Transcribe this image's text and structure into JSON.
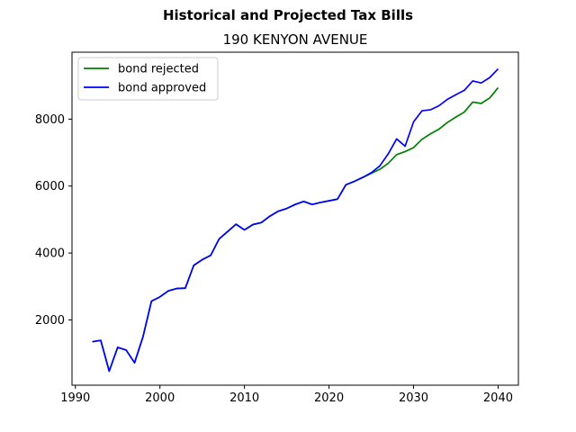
{
  "chart_data": {
    "type": "line",
    "title": "Historical and Projected Tax Bills",
    "subtitle": "190 KENYON AVENUE",
    "xlabel": "",
    "ylabel": "",
    "xlim": [
      1989.6,
      2042.4
    ],
    "ylim": [
      50,
      10000
    ],
    "x_ticks": [
      1990,
      2000,
      2010,
      2020,
      2030,
      2040
    ],
    "y_ticks": [
      2000,
      4000,
      6000,
      8000
    ],
    "grid": false,
    "legend_position": "top-left",
    "x": [
      1992,
      1993,
      1994,
      1995,
      1996,
      1997,
      1998,
      1999,
      2000,
      2001,
      2002,
      2003,
      2004,
      2005,
      2006,
      2007,
      2008,
      2009,
      2010,
      2011,
      2012,
      2013,
      2014,
      2015,
      2016,
      2017,
      2018,
      2019,
      2020,
      2021,
      2022,
      2023,
      2024,
      2025,
      2026,
      2027,
      2028,
      2029,
      2030,
      2031,
      2032,
      2033,
      2034,
      2035,
      2036,
      2037,
      2038,
      2039,
      2040
    ],
    "series": [
      {
        "name": "bond rejected",
        "color": "#008000",
        "values": [
          1350,
          1390,
          470,
          1180,
          1100,
          720,
          1500,
          2560,
          2690,
          2870,
          2940,
          2950,
          3630,
          3800,
          3930,
          4420,
          4640,
          4860,
          4690,
          4850,
          4910,
          5100,
          5250,
          5330,
          5450,
          5540,
          5450,
          5510,
          5560,
          5610,
          6040,
          6140,
          6260,
          6380,
          6500,
          6680,
          6940,
          7030,
          7150,
          7400,
          7560,
          7700,
          7900,
          8060,
          8210,
          8510,
          8470,
          8630,
          8940
        ]
      },
      {
        "name": "bond approved",
        "color": "#0000ff",
        "values": [
          1350,
          1390,
          470,
          1180,
          1100,
          720,
          1500,
          2560,
          2690,
          2870,
          2940,
          2950,
          3630,
          3800,
          3930,
          4420,
          4640,
          4860,
          4690,
          4850,
          4910,
          5100,
          5250,
          5330,
          5450,
          5540,
          5450,
          5510,
          5560,
          5610,
          6040,
          6140,
          6260,
          6400,
          6600,
          6960,
          7410,
          7190,
          7920,
          8250,
          8280,
          8400,
          8590,
          8730,
          8860,
          9140,
          9080,
          9240,
          9500
        ]
      }
    ]
  }
}
